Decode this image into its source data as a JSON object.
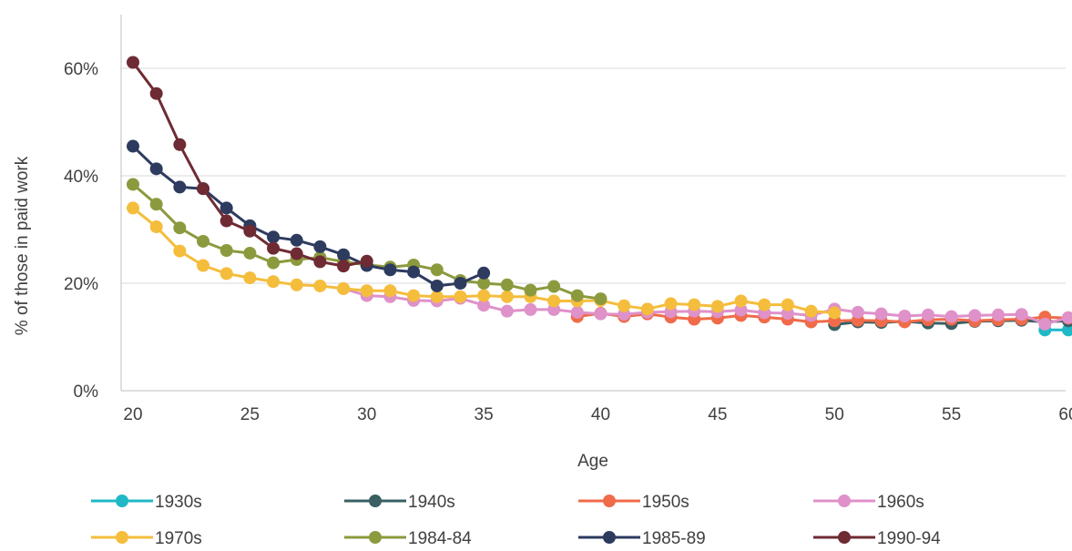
{
  "chart_data": {
    "type": "line",
    "title": "",
    "xlabel": "Age",
    "ylabel": "% of those in paid work",
    "xlim": [
      20,
      60
    ],
    "ylim": [
      0,
      0.7
    ],
    "x_ticks": [
      20,
      25,
      30,
      35,
      40,
      45,
      50,
      55,
      60
    ],
    "x_tick_labels": [
      "20",
      "25",
      "30",
      "35",
      "40",
      "45",
      "50",
      "55",
      "60"
    ],
    "y_ticks": [
      0,
      0.2,
      0.4,
      0.6
    ],
    "y_tick_labels": [
      "0%",
      "20%",
      "40%",
      "60%"
    ],
    "grid": "horizontal",
    "legend_position": "bottom",
    "series": [
      {
        "name": "1930s",
        "color": "#1fb8c6",
        "x": [
          59,
          60
        ],
        "y": [
          0.113,
          0.113
        ]
      },
      {
        "name": "1940s",
        "color": "#3a5f62",
        "x": [
          50,
          51,
          52,
          53,
          54,
          55,
          56,
          57,
          58,
          59,
          60
        ],
        "y": [
          0.123,
          0.128,
          0.127,
          0.129,
          0.126,
          0.125,
          0.129,
          0.13,
          0.131,
          0.128,
          0.13
        ]
      },
      {
        "name": "1950s",
        "color": "#f06b4a",
        "x": [
          39,
          40,
          41,
          42,
          43,
          44,
          45,
          46,
          47,
          48,
          49,
          50,
          51,
          52,
          53,
          54,
          55,
          56,
          57,
          58,
          59,
          60
        ],
        "y": [
          0.138,
          0.144,
          0.138,
          0.143,
          0.137,
          0.133,
          0.135,
          0.14,
          0.137,
          0.133,
          0.128,
          0.13,
          0.131,
          0.13,
          0.128,
          0.132,
          0.133,
          0.13,
          0.132,
          0.133,
          0.137,
          0.135
        ]
      },
      {
        "name": "1960s",
        "color": "#df91c9",
        "x": [
          29,
          30,
          31,
          32,
          33,
          34,
          35,
          36,
          37,
          38,
          39,
          40,
          41,
          42,
          43,
          44,
          45,
          46,
          47,
          48,
          49,
          50,
          51,
          52,
          53,
          54,
          55,
          56,
          57,
          58,
          59,
          60
        ],
        "y": [
          0.19,
          0.177,
          0.175,
          0.168,
          0.167,
          0.172,
          0.159,
          0.148,
          0.151,
          0.151,
          0.146,
          0.143,
          0.142,
          0.146,
          0.147,
          0.148,
          0.147,
          0.15,
          0.145,
          0.144,
          0.14,
          0.152,
          0.146,
          0.143,
          0.139,
          0.141,
          0.138,
          0.14,
          0.141,
          0.142,
          0.124,
          0.136
        ]
      },
      {
        "name": "1970s",
        "color": "#f5bd3c",
        "x": [
          20,
          21,
          22,
          23,
          24,
          25,
          26,
          27,
          28,
          29,
          30,
          31,
          32,
          33,
          34,
          35,
          36,
          37,
          38,
          39,
          40,
          41,
          42,
          43,
          44,
          45,
          46,
          47,
          48,
          49,
          50
        ],
        "y": [
          0.34,
          0.305,
          0.26,
          0.233,
          0.218,
          0.21,
          0.203,
          0.197,
          0.195,
          0.19,
          0.186,
          0.186,
          0.177,
          0.175,
          0.175,
          0.177,
          0.175,
          0.175,
          0.167,
          0.167,
          0.168,
          0.158,
          0.152,
          0.162,
          0.16,
          0.157,
          0.167,
          0.16,
          0.16,
          0.148,
          0.145
        ]
      },
      {
        "name": "1984-84",
        "color": "#8c9a3e",
        "x": [
          20,
          21,
          22,
          23,
          24,
          25,
          26,
          27,
          28,
          29,
          30,
          31,
          32,
          33,
          34,
          35,
          36,
          37,
          38,
          39,
          40
        ],
        "y": [
          0.384,
          0.347,
          0.303,
          0.278,
          0.261,
          0.256,
          0.238,
          0.244,
          0.248,
          0.24,
          0.234,
          0.23,
          0.234,
          0.225,
          0.205,
          0.2,
          0.197,
          0.187,
          0.194,
          0.177,
          0.171
        ]
      },
      {
        "name": "1985-89",
        "color": "#2d3b5f",
        "x": [
          20,
          21,
          22,
          23,
          24,
          25,
          26,
          27,
          28,
          29,
          30,
          31,
          32,
          33,
          34,
          35
        ],
        "y": [
          0.455,
          0.413,
          0.379,
          0.376,
          0.34,
          0.307,
          0.286,
          0.28,
          0.268,
          0.253,
          0.233,
          0.225,
          0.221,
          0.195,
          0.2,
          0.219
        ]
      },
      {
        "name": "1990-94",
        "color": "#6e2b33",
        "x": [
          20,
          21,
          22,
          23,
          24,
          25,
          26,
          27,
          28,
          29,
          30
        ],
        "y": [
          0.611,
          0.553,
          0.458,
          0.376,
          0.316,
          0.297,
          0.265,
          0.255,
          0.24,
          0.232,
          0.241
        ]
      }
    ]
  }
}
